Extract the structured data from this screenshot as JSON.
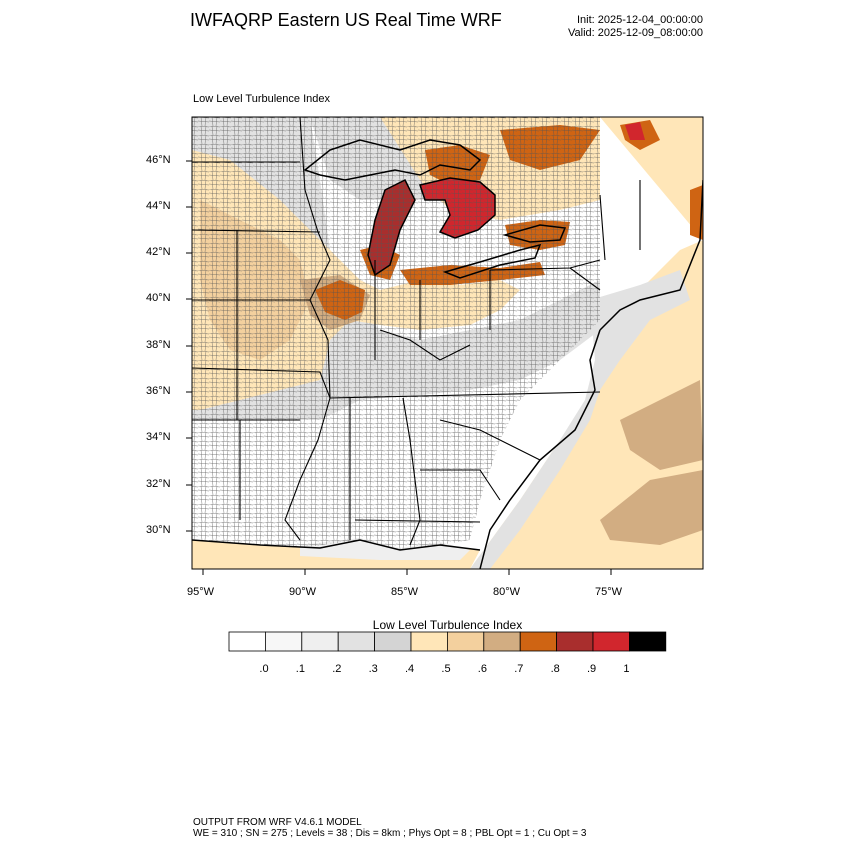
{
  "header": {
    "title": "IWFAQRP Eastern US Real Time WRF",
    "init": "Init: 2025-12-04_00:00:00",
    "valid": "Valid: 2025-12-09_08:00:00"
  },
  "field": {
    "title": "Low Level Turbulence Index"
  },
  "map": {
    "lat_labels": [
      "46°N",
      "44°N",
      "42°N",
      "40°N",
      "38°N",
      "36°N",
      "34°N",
      "32°N",
      "30°N"
    ],
    "lon_labels": [
      "95°W",
      "90°W",
      "85°W",
      "80°W",
      "75°W"
    ]
  },
  "colorbar": {
    "title": "Low Level Turbulence Index",
    "labels": [
      ".0",
      ".1",
      ".2",
      ".3",
      ".4",
      ".5",
      ".6",
      ".7",
      ".8",
      ".9",
      "1"
    ],
    "colors": [
      "#ffffff",
      "#f7f7f7",
      "#efefef",
      "#e2e2e2",
      "#d4d4d4",
      "#ffe6b8",
      "#f3d09e",
      "#d2ad82",
      "#cf6413",
      "#a92e2d",
      "#d1262d",
      "#000000"
    ]
  },
  "footer": {
    "line1": "OUTPUT FROM WRF V4.6.1 MODEL",
    "line2": "WE = 310 ; SN = 275 ; Levels = 38 ; Dis = 8km ; Phys Opt = 8 ; PBL Opt = 1 ; Cu Opt = 3"
  }
}
